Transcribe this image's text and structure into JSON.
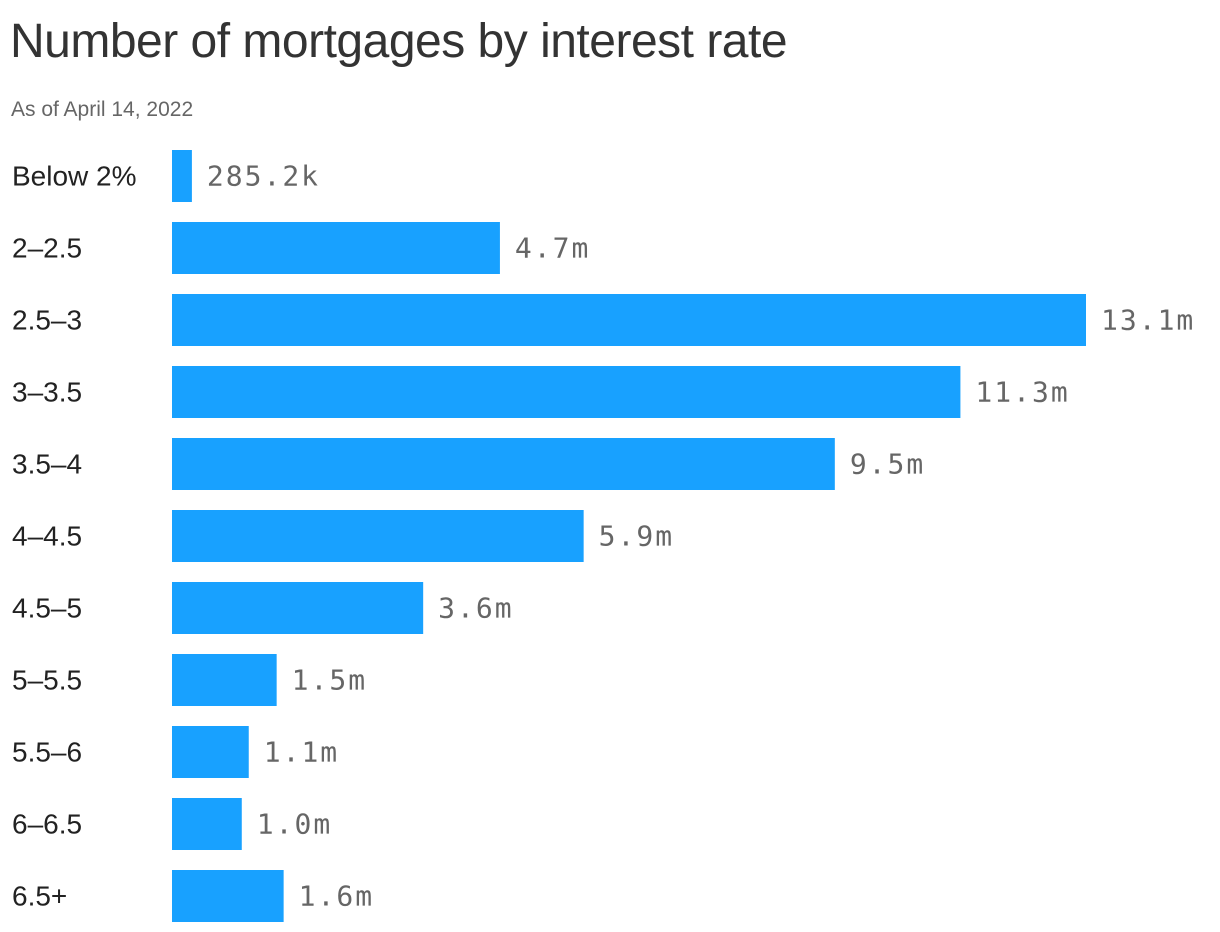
{
  "title": "Number of mortgages by interest rate",
  "subtitle": "As of April 14, 2022",
  "colors": {
    "bar": "#18a1ff",
    "text": "#333333",
    "value_text": "#666666"
  },
  "chart_data": {
    "type": "bar",
    "orientation": "horizontal",
    "title": "Number of mortgages by interest rate",
    "subtitle": "As of April 14, 2022",
    "xlabel": "",
    "ylabel": "",
    "grid": false,
    "legend": "none",
    "xlim": [
      0,
      13100000
    ],
    "categories": [
      "Below 2%",
      "2–2.5",
      "2.5–3",
      "3–3.5",
      "3.5–4",
      "4–4.5",
      "4.5–5",
      "5–5.5",
      "5.5–6",
      "6–6.5",
      "6.5+"
    ],
    "values": [
      285200,
      4700000,
      13100000,
      11300000,
      9500000,
      5900000,
      3600000,
      1500000,
      1100000,
      1000000,
      1600000
    ],
    "data_labels": [
      "285.2k",
      "4.7m",
      "13.1m",
      "11.3m",
      "9.5m",
      "5.9m",
      "3.6m",
      "1.5m",
      "1.1m",
      "1.0m",
      "1.6m"
    ]
  }
}
